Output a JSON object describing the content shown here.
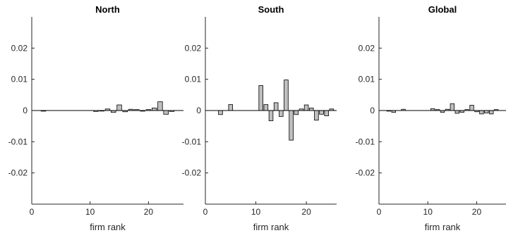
{
  "chart_data": [
    {
      "type": "bar",
      "title": "North",
      "xlabel": "firm rank",
      "ylabel": "",
      "xlim": [
        0,
        26
      ],
      "ylim": [
        -0.03,
        0.03
      ],
      "xticks": [
        "0",
        "10",
        "20"
      ],
      "yticks": [
        "0.02",
        "0.01",
        "0",
        "-0.01",
        "-0.02"
      ],
      "x": [
        2,
        11,
        12,
        13,
        14,
        15,
        16,
        17,
        18,
        19,
        20,
        21,
        22,
        23,
        24
      ],
      "values": [
        -0.0002,
        -0.0003,
        0.0,
        0.0005,
        -0.0006,
        0.0018,
        -0.0004,
        0.0004,
        0.0003,
        -0.0002,
        0.0003,
        0.0008,
        0.0028,
        -0.0012,
        -0.0003
      ]
    },
    {
      "type": "bar",
      "title": "South",
      "xlabel": "firm rank",
      "ylabel": "",
      "xlim": [
        0,
        26
      ],
      "ylim": [
        -0.03,
        0.03
      ],
      "xticks": [
        "0",
        "10",
        "20"
      ],
      "yticks": [
        "0.02",
        "0.01",
        "0",
        "-0.01",
        "-0.02"
      ],
      "x": [
        3,
        5,
        11,
        12,
        13,
        14,
        15,
        16,
        17,
        18,
        19,
        20,
        21,
        22,
        23,
        24,
        25
      ],
      "values": [
        -0.0013,
        0.0019,
        0.008,
        0.0019,
        -0.0033,
        0.0025,
        -0.0019,
        0.0098,
        -0.0095,
        -0.0013,
        0.0005,
        0.0018,
        0.0008,
        -0.0031,
        -0.0012,
        -0.0017,
        0.0005
      ]
    },
    {
      "type": "bar",
      "title": "Global",
      "xlabel": "firm rank",
      "ylabel": "",
      "xlim": [
        0,
        26
      ],
      "ylim": [
        -0.03,
        0.03
      ],
      "xticks": [
        "0",
        "10",
        "20"
      ],
      "yticks": [
        "0.02",
        "0.01",
        "0",
        "-0.01",
        "-0.02"
      ],
      "x": [
        2,
        3,
        5,
        11,
        12,
        13,
        14,
        15,
        16,
        17,
        18,
        19,
        20,
        21,
        22,
        23,
        24
      ],
      "values": [
        -0.0002,
        -0.0006,
        0.0004,
        0.0006,
        0.0003,
        -0.0006,
        0.0004,
        0.0022,
        -0.0009,
        -0.0006,
        0.0003,
        0.0017,
        -0.0004,
        -0.0011,
        -0.0008,
        -0.0011,
        0.0003
      ]
    }
  ]
}
